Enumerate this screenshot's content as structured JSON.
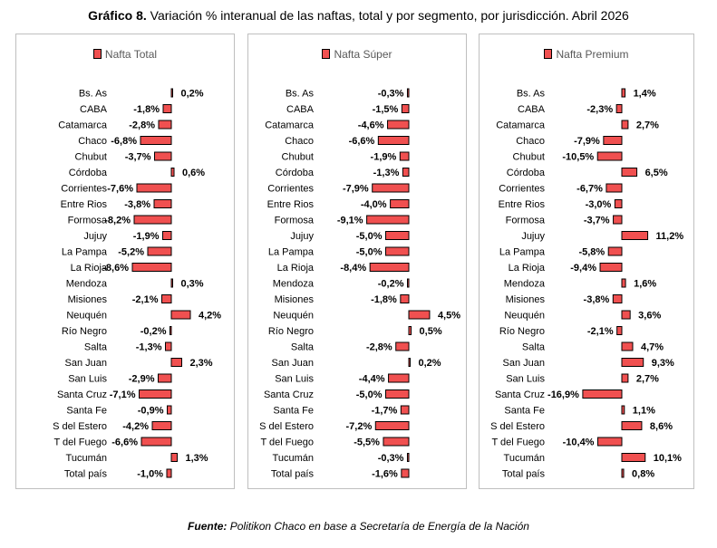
{
  "header": {
    "label": "Gráfico 8.",
    "text": "Variación % interanual de las naftas, total y por segmento, por jurisdicción. Abril 2026"
  },
  "footer": {
    "label": "Fuente:",
    "text": "Politikon Chaco en base a Secretaría de Energía de la Nación"
  },
  "colors": {
    "bar": "#f05050",
    "bar_border": "#000000",
    "axis": "#000000"
  },
  "chart_data": [
    {
      "type": "bar",
      "orientation": "horizontal",
      "legend": "Nafta Total",
      "categories": [
        "Bs. As",
        "CABA",
        "Catamarca",
        "Chaco",
        "Chubut",
        "Córdoba",
        "Corrientes",
        "Entre Rios",
        "Formosa",
        "Jujuy",
        "La Pampa",
        "La Rioja",
        "Mendoza",
        "Misiones",
        "Neuquén",
        "Río Negro",
        "Salta",
        "San Juan",
        "San Luis",
        "Santa Cruz",
        "Santa Fe",
        "S del Estero",
        "T del Fuego",
        "Tucumán",
        "Total país"
      ],
      "values": [
        0.2,
        -1.8,
        -2.8,
        -6.8,
        -3.7,
        0.6,
        -7.6,
        -3.8,
        -8.2,
        -1.9,
        -5.2,
        -8.6,
        0.3,
        -2.1,
        4.2,
        -0.2,
        -1.3,
        2.3,
        -2.9,
        -7.1,
        -0.9,
        -4.2,
        -6.6,
        1.3,
        -1.0
      ],
      "labels": [
        "0,2%",
        "-1,8%",
        "-2,8%",
        "-6,8%",
        "-3,7%",
        "0,6%",
        "-7,6%",
        "-3,8%",
        "-8,2%",
        "-1,9%",
        "-5,2%",
        "-8,6%",
        "0,3%",
        "-2,1%",
        "4,2%",
        "-0,2%",
        "-1,3%",
        "2,3%",
        "-2,9%",
        "-7,1%",
        "-0,9%",
        "-4,2%",
        "-6,6%",
        "1,3%",
        "-1,0%"
      ],
      "xlim": [
        -10,
        6
      ]
    },
    {
      "type": "bar",
      "orientation": "horizontal",
      "legend": "Nafta Súper",
      "categories": [
        "Bs. As",
        "CABA",
        "Catamarca",
        "Chaco",
        "Chubut",
        "Córdoba",
        "Corrientes",
        "Entre Rios",
        "Formosa",
        "Jujuy",
        "La Pampa",
        "La Rioja",
        "Mendoza",
        "Misiones",
        "Neuquén",
        "Río Negro",
        "Salta",
        "San Juan",
        "San Luis",
        "Santa Cruz",
        "Santa Fe",
        "S del Estero",
        "T del Fuego",
        "Tucumán",
        "Total país"
      ],
      "values": [
        -0.3,
        -1.5,
        -4.6,
        -6.6,
        -1.9,
        -1.3,
        -7.9,
        -4.0,
        -9.1,
        -5.0,
        -5.0,
        -8.4,
        -0.2,
        -1.8,
        4.5,
        0.5,
        -2.8,
        0.2,
        -4.4,
        -5.0,
        -1.7,
        -7.2,
        -5.5,
        -0.3,
        -1.6
      ],
      "labels": [
        "-0,3%",
        "-1,5%",
        "-4,6%",
        "-6,6%",
        "-1,9%",
        "-1,3%",
        "-7,9%",
        "-4,0%",
        "-9,1%",
        "-5,0%",
        "-5,0%",
        "-8,4%",
        "-0,2%",
        "-1,8%",
        "4,5%",
        "0,5%",
        "-2,8%",
        "0,2%",
        "-4,4%",
        "-5,0%",
        "-1,7%",
        "-7,2%",
        "-5,5%",
        "-0,3%",
        "-1,6%"
      ],
      "xlim": [
        -10,
        6
      ]
    },
    {
      "type": "bar",
      "orientation": "horizontal",
      "legend": "Nafta Premium",
      "categories": [
        "Bs. As",
        "CABA",
        "Catamarca",
        "Chaco",
        "Chubut",
        "Córdoba",
        "Corrientes",
        "Entre Rios",
        "Formosa",
        "Jujuy",
        "La Pampa",
        "La Rioja",
        "Mendoza",
        "Misiones",
        "Neuquén",
        "Río Negro",
        "Salta",
        "San Juan",
        "San Luis",
        "Santa Cruz",
        "Santa Fe",
        "S del Estero",
        "T del Fuego",
        "Tucumán",
        "Total país"
      ],
      "values": [
        1.4,
        -2.3,
        2.7,
        -7.9,
        -10.5,
        6.5,
        -6.7,
        -3.0,
        -3.7,
        11.2,
        -5.8,
        -9.4,
        1.6,
        -3.8,
        3.6,
        -2.1,
        4.7,
        9.3,
        2.7,
        -16.9,
        1.1,
        8.6,
        -10.4,
        10.1,
        0.8
      ],
      "labels": [
        "1,4%",
        "-2,3%",
        "2,7%",
        "-7,9%",
        "-10,5%",
        "6,5%",
        "-6,7%",
        "-3,0%",
        "-3,7%",
        "11,2%",
        "-5,8%",
        "-9,4%",
        "1,6%",
        "-3,8%",
        "3,6%",
        "-2,1%",
        "4,7%",
        "9,3%",
        "2,7%",
        "-16,9%",
        "1,1%",
        "8,6%",
        "-10,4%",
        "10,1%",
        "0,8%"
      ],
      "xlim": [
        -17,
        13
      ]
    }
  ]
}
